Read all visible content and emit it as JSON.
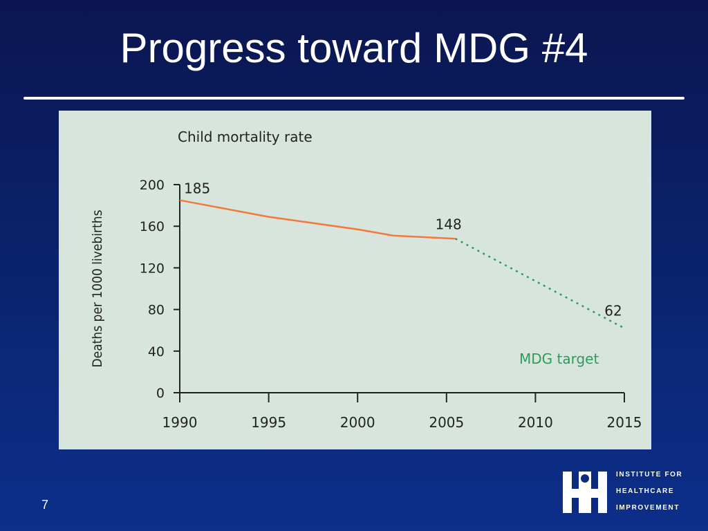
{
  "slide": {
    "title": "Progress toward MDG #4",
    "page_number": "7"
  },
  "logo": {
    "lines": [
      "INSTITUTE FOR",
      "HEALTHCARE",
      "IMPROVEMENT"
    ]
  },
  "colors": {
    "observed": "#f07a3a",
    "target": "#2e9a5e",
    "panel": "#d8e5dc",
    "text": "#222222"
  },
  "chart_data": {
    "type": "line",
    "title": "Child mortality rate",
    "ylabel": "Deaths per 1000 livebirths",
    "xlabel": "",
    "xlim": [
      1990,
      2015
    ],
    "ylim": [
      0,
      200
    ],
    "x_ticks": [
      "1990",
      "1995",
      "2000",
      "2005",
      "2010",
      "2015"
    ],
    "y_ticks": [
      "0",
      "40",
      "80",
      "120",
      "160",
      "200"
    ],
    "grid": false,
    "legend": "none",
    "series": [
      {
        "style": "solid",
        "points": [
          [
            1990,
            185
          ],
          [
            1995,
            169
          ],
          [
            2000,
            157
          ],
          [
            2002,
            151
          ],
          [
            2005.5,
            148
          ]
        ]
      },
      {
        "style": "dotted",
        "label": "MDG target",
        "points": [
          [
            2005.5,
            148
          ],
          [
            2015,
            62
          ]
        ]
      }
    ],
    "annotations": [
      {
        "text": "185",
        "x": 1990,
        "y": 185
      },
      {
        "text": "148",
        "x": 2005.5,
        "y": 148
      },
      {
        "text": "62",
        "x": 2015,
        "y": 62
      }
    ]
  }
}
